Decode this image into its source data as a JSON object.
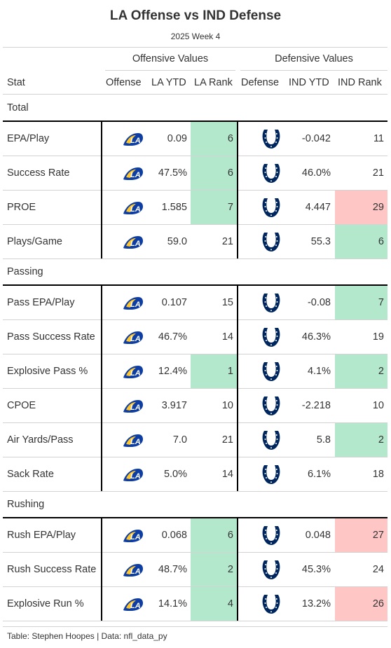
{
  "title": "LA Offense vs IND Defense",
  "subtitle": "2025 Week 4",
  "spanners": {
    "offense": "Offensive Values",
    "defense": "Defensive Values"
  },
  "columns": {
    "stat": "Stat",
    "offense": "Offense",
    "off_ytd": "LA YTD",
    "off_rank": "LA Rank",
    "defense": "Defense",
    "def_ytd": "IND YTD",
    "def_rank": "IND Rank"
  },
  "colors": {
    "good": "#b3e8cd",
    "bad": "#ffc6c6",
    "rams_blue": "#0f3ea3",
    "rams_gold": "#ffc72c",
    "colts_blue": "#00275d"
  },
  "icons": {
    "offense_logo": "rams-logo-icon",
    "defense_logo": "colts-horseshoe-icon"
  },
  "groups": [
    {
      "label": "Total",
      "rows": [
        {
          "stat": "EPA/Play",
          "off_ytd": "0.09",
          "off_rank": "6",
          "off_hl": "good",
          "def_ytd": "-0.042",
          "def_rank": "11",
          "def_hl": ""
        },
        {
          "stat": "Success Rate",
          "off_ytd": "47.5%",
          "off_rank": "6",
          "off_hl": "good",
          "def_ytd": "46.0%",
          "def_rank": "21",
          "def_hl": ""
        },
        {
          "stat": "PROE",
          "off_ytd": "1.585",
          "off_rank": "7",
          "off_hl": "good",
          "def_ytd": "4.447",
          "def_rank": "29",
          "def_hl": "bad"
        },
        {
          "stat": "Plays/Game",
          "off_ytd": "59.0",
          "off_rank": "21",
          "off_hl": "",
          "def_ytd": "55.3",
          "def_rank": "6",
          "def_hl": "good"
        }
      ]
    },
    {
      "label": "Passing",
      "rows": [
        {
          "stat": "Pass EPA/Play",
          "off_ytd": "0.107",
          "off_rank": "15",
          "off_hl": "",
          "def_ytd": "-0.08",
          "def_rank": "7",
          "def_hl": "good"
        },
        {
          "stat": "Pass Success Rate",
          "off_ytd": "46.7%",
          "off_rank": "14",
          "off_hl": "",
          "def_ytd": "46.3%",
          "def_rank": "19",
          "def_hl": ""
        },
        {
          "stat": "Explosive Pass %",
          "off_ytd": "12.4%",
          "off_rank": "1",
          "off_hl": "good",
          "def_ytd": "4.1%",
          "def_rank": "2",
          "def_hl": "good"
        },
        {
          "stat": "CPOE",
          "off_ytd": "3.917",
          "off_rank": "10",
          "off_hl": "",
          "def_ytd": "-2.218",
          "def_rank": "10",
          "def_hl": ""
        },
        {
          "stat": "Air Yards/Pass",
          "off_ytd": "7.0",
          "off_rank": "21",
          "off_hl": "",
          "def_ytd": "5.8",
          "def_rank": "2",
          "def_hl": "good"
        },
        {
          "stat": "Sack Rate",
          "off_ytd": "5.0%",
          "off_rank": "14",
          "off_hl": "",
          "def_ytd": "6.1%",
          "def_rank": "18",
          "def_hl": ""
        }
      ]
    },
    {
      "label": "Rushing",
      "rows": [
        {
          "stat": "Rush EPA/Play",
          "off_ytd": "0.068",
          "off_rank": "6",
          "off_hl": "good",
          "def_ytd": "0.048",
          "def_rank": "27",
          "def_hl": "bad"
        },
        {
          "stat": "Rush Success Rate",
          "off_ytd": "48.7%",
          "off_rank": "2",
          "off_hl": "good",
          "def_ytd": "45.3%",
          "def_rank": "24",
          "def_hl": ""
        },
        {
          "stat": "Explosive Run %",
          "off_ytd": "14.1%",
          "off_rank": "4",
          "off_hl": "good",
          "def_ytd": "13.2%",
          "def_rank": "26",
          "def_hl": "bad"
        }
      ]
    }
  ],
  "footer": "Table: Stephen Hoopes | Data: nfl_data_py"
}
